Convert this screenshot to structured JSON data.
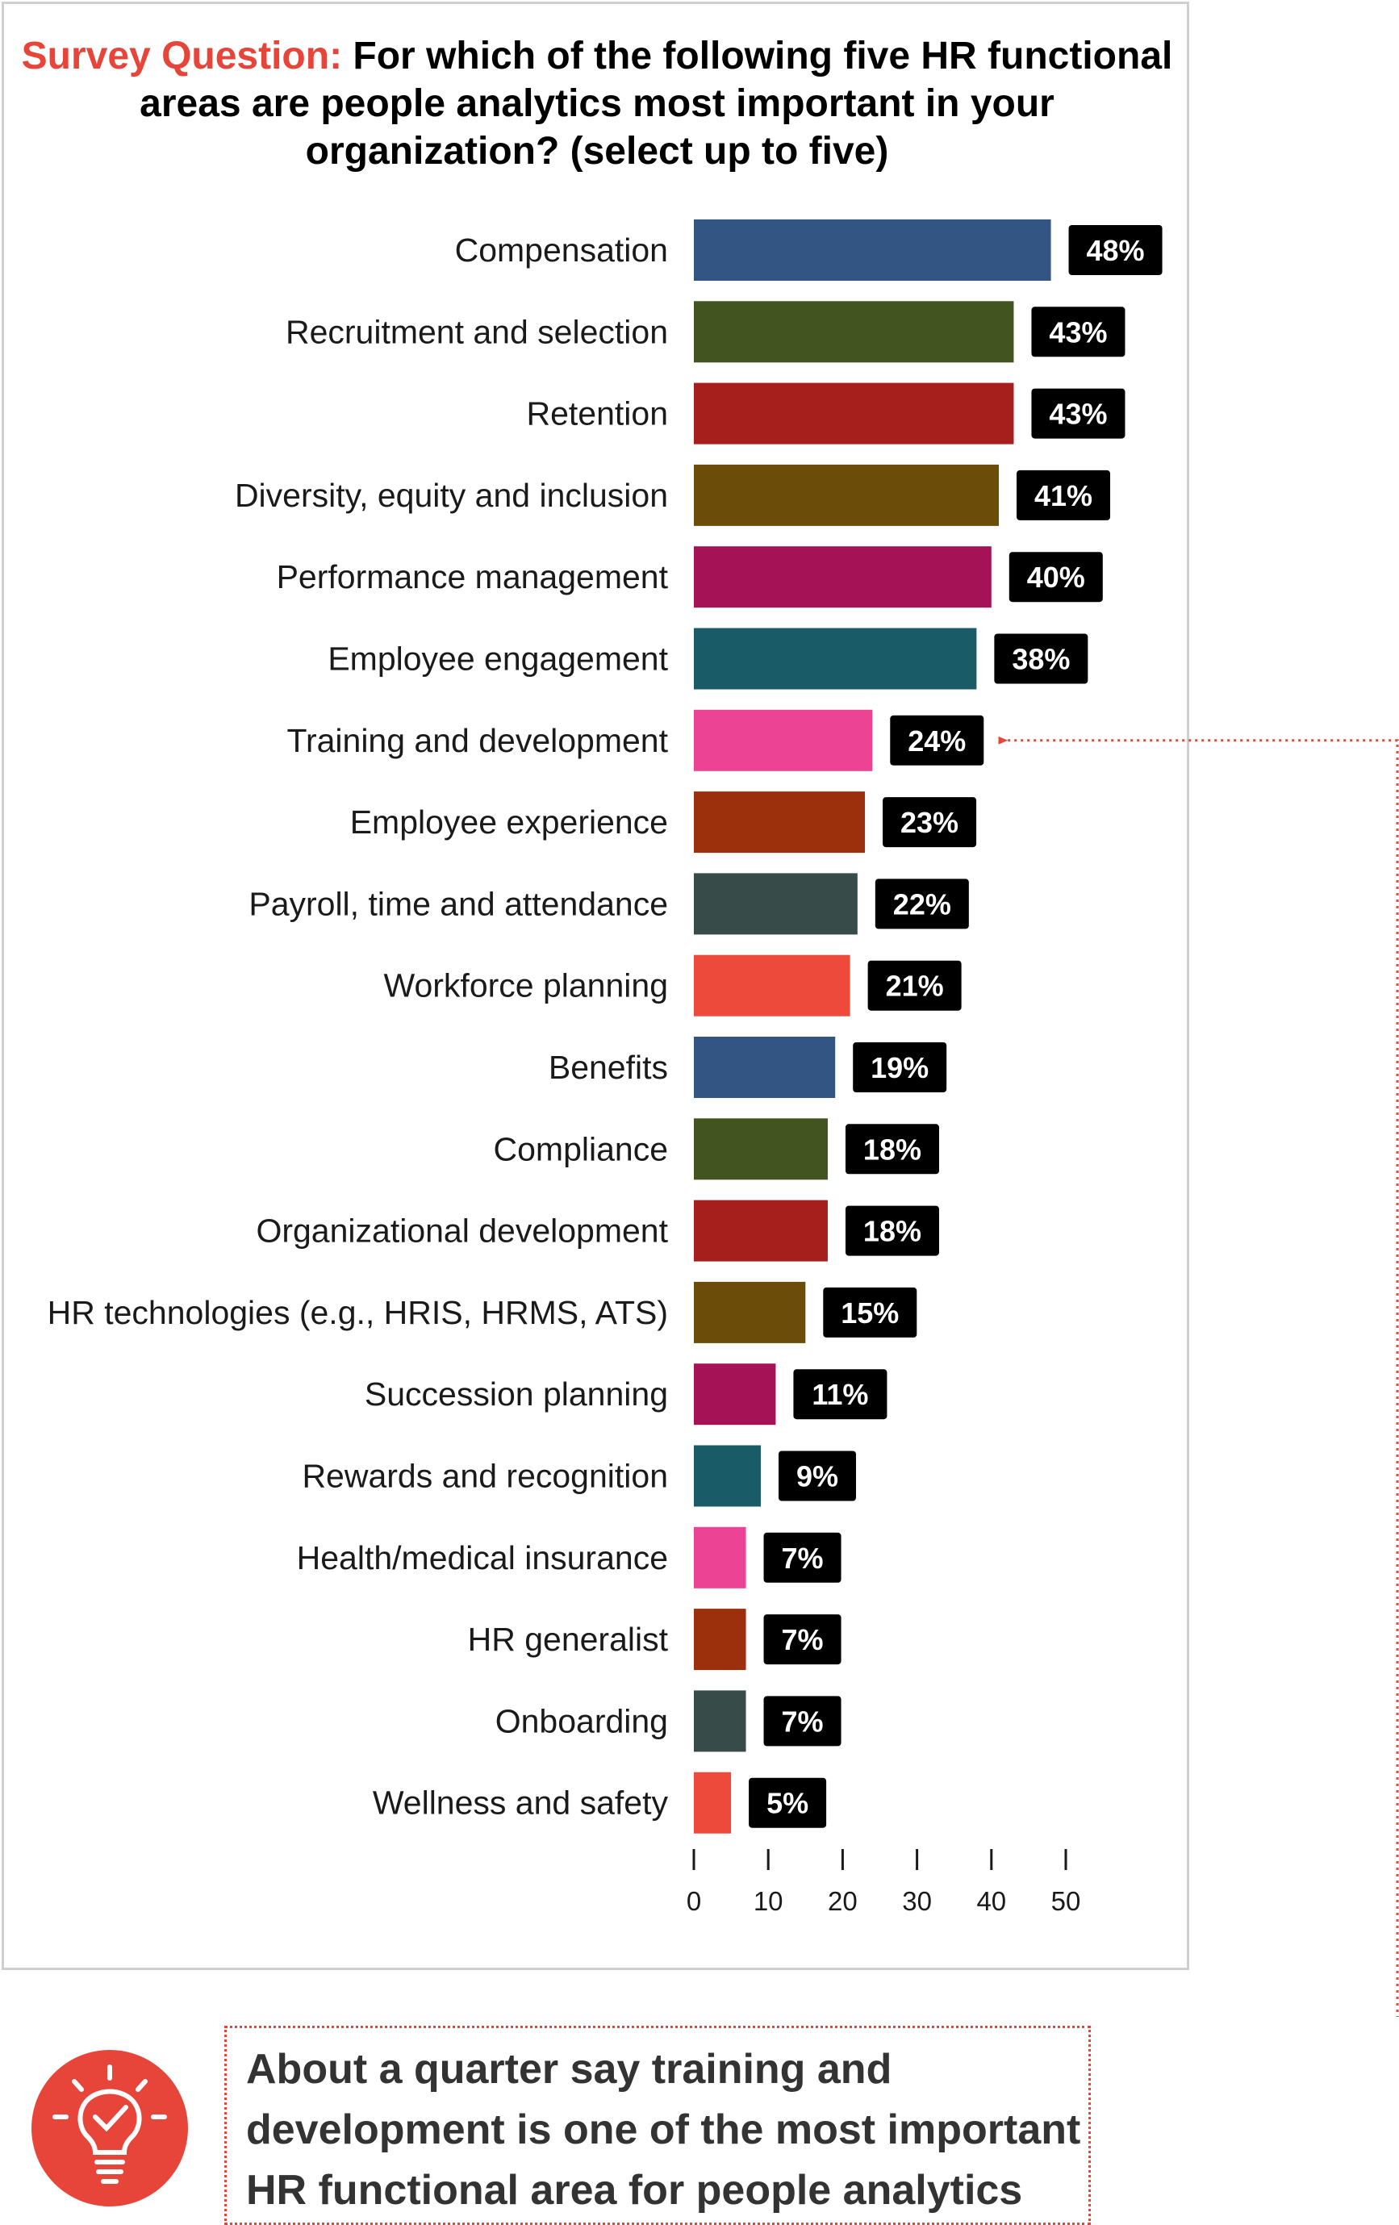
{
  "title": {
    "prefix": "Survey Question:",
    "question": "For which of the following five HR functional areas are people analytics most important in your organization? (select up to five)"
  },
  "chart_data": {
    "type": "bar",
    "orientation": "horizontal",
    "categories": [
      "Compensation",
      "Recruitment and selection",
      "Retention",
      "Diversity, equity and inclusion",
      "Performance management",
      "Employee engagement",
      "Training and development",
      "Employee experience",
      "Payroll, time and attendance",
      "Workforce planning",
      "Benefits",
      "Compliance",
      "Organizational development",
      "HR technologies (e.g., HRIS, HRMS, ATS)",
      "Succession planning",
      "Rewards and recognition",
      "Health/medical insurance",
      "HR generalist",
      "Onboarding",
      "Wellness and safety"
    ],
    "values": [
      48,
      43,
      43,
      41,
      40,
      38,
      24,
      23,
      22,
      21,
      19,
      18,
      18,
      15,
      11,
      9,
      7,
      7,
      7,
      5
    ],
    "value_labels": [
      "48%",
      "43%",
      "43%",
      "41%",
      "40%",
      "38%",
      "24%",
      "23%",
      "22%",
      "21%",
      "19%",
      "18%",
      "18%",
      "15%",
      "11%",
      "9%",
      "7%",
      "7%",
      "7%",
      "5%"
    ],
    "bar_colors": [
      "#335584",
      "#425520",
      "#a61f1c",
      "#6b4c08",
      "#a51356",
      "#195c68",
      "#ec4394",
      "#9c2f0c",
      "#374b49",
      "#ee4a3b",
      "#335584",
      "#425520",
      "#a61f1c",
      "#6b4c08",
      "#a51356",
      "#195c68",
      "#ec4394",
      "#9c2f0c",
      "#374b49",
      "#ee4a3b"
    ],
    "xlim": [
      0,
      50
    ],
    "xticks": [
      "0",
      "10",
      "20",
      "30",
      "40",
      "50"
    ],
    "xlabel": "",
    "ylabel": "",
    "grid": false,
    "highlighted_category": "Training and development",
    "value_label_style": "black badge right of bar"
  },
  "callout": {
    "text": "About a quarter say training and development is one of the most important HR functional area for people analytics",
    "icon": "lightbulb-check-icon",
    "accent_color": "#e8453a",
    "text_color": "#333333"
  }
}
